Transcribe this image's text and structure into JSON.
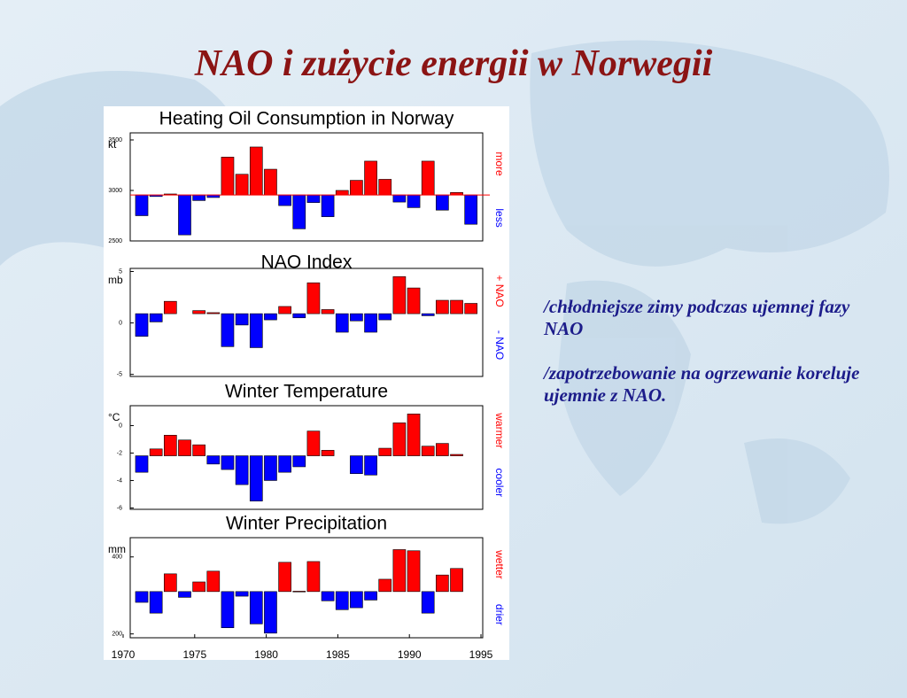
{
  "title": "NAO i zużycie energii w Norwegii",
  "notes": [
    "/chłodniejsze zimy podczas ujemnej fazy NAO",
    "/zapotrzebowanie na ogrzewanie koreluje ujemnie z NAO."
  ],
  "chart_data": [
    {
      "type": "bar",
      "title": "Heating Oil Consumption in Norway",
      "y_label": "kt",
      "annotations": [
        "more",
        "less"
      ],
      "x": [
        1971,
        1972,
        1973,
        1974,
        1975,
        1976,
        1977,
        1978,
        1979,
        1980,
        1981,
        1982,
        1983,
        1984,
        1985,
        1986,
        1987,
        1988,
        1989,
        1990,
        1991,
        1992,
        1993,
        1994
      ],
      "values": [
        2750,
        2940,
        2965,
        2560,
        2900,
        2930,
        3330,
        3160,
        3430,
        3210,
        2850,
        2620,
        2880,
        2740,
        3000,
        3100,
        3290,
        3110,
        2885,
        2830,
        3290,
        2805,
        2980,
        2665
      ],
      "baseline": 2955,
      "baseline_color": "#ff0000",
      "above_color": "#ff0000",
      "below_color": "#0000ff",
      "xlim": [
        1970,
        1995
      ],
      "ylim": [
        2500,
        3570
      ],
      "yticks": [
        2500,
        3000,
        3500
      ]
    },
    {
      "type": "bar",
      "title": "NAO Index",
      "y_label": "mb",
      "annotations": [
        "+ NAO",
        "- NAO"
      ],
      "x": [
        1971,
        1972,
        1973,
        1974,
        1975,
        1976,
        1977,
        1978,
        1979,
        1980,
        1981,
        1982,
        1983,
        1984,
        1985,
        1986,
        1987,
        1988,
        1989,
        1990,
        1991,
        1992,
        1993,
        1994
      ],
      "values": [
        -1.3,
        0.1,
        2.1,
        null,
        1.2,
        1.0,
        -2.3,
        -0.2,
        -2.4,
        0.3,
        1.6,
        0.5,
        3.9,
        1.3,
        -0.9,
        0.2,
        -0.9,
        0.3,
        4.5,
        3.4,
        0.7,
        2.2,
        2.2,
        1.9
      ],
      "baseline": 0.9,
      "above_color": "#ff0000",
      "below_color": "#0000ff",
      "xlim": [
        1970,
        1995
      ],
      "ylim": [
        -5.2,
        5.3
      ],
      "yticks": [
        -5,
        0,
        5
      ]
    },
    {
      "type": "bar",
      "title": "Winter Temperature",
      "y_label": "°C",
      "annotations": [
        "warmer",
        "cooler"
      ],
      "x": [
        1971,
        1972,
        1973,
        1974,
        1975,
        1976,
        1977,
        1978,
        1979,
        1980,
        1981,
        1982,
        1983,
        1984,
        1985,
        1986,
        1987,
        1988,
        1989,
        1990,
        1991,
        1992,
        1993,
        1994
      ],
      "values": [
        -3.4,
        -1.7,
        -0.7,
        -1.05,
        -1.4,
        -2.8,
        -3.2,
        -4.3,
        -5.5,
        -4.0,
        -3.4,
        -3.0,
        -0.4,
        -1.8,
        null,
        -3.5,
        -3.6,
        -1.65,
        0.2,
        0.85,
        -1.5,
        -1.3,
        -2.1,
        null
      ],
      "baseline": -2.2,
      "above_color": "#ff0000",
      "below_color": "#0000ff",
      "xlim": [
        1970,
        1995
      ],
      "ylim": [
        -6.1,
        1.45
      ],
      "yticks": [
        -6,
        -4,
        -2,
        0
      ]
    },
    {
      "type": "bar",
      "title": "Winter Precipitation",
      "y_label": "mm",
      "annotations": [
        "wetter",
        "drier"
      ],
      "x": [
        1971,
        1972,
        1973,
        1974,
        1975,
        1976,
        1977,
        1978,
        1979,
        1980,
        1981,
        1982,
        1983,
        1984,
        1985,
        1986,
        1987,
        1988,
        1989,
        1990,
        1991,
        1992,
        1993,
        1994
      ],
      "values": [
        282,
        254,
        356,
        295,
        335,
        363,
        216,
        298,
        226,
        202,
        386,
        311,
        388,
        286,
        263,
        268,
        288,
        342,
        419,
        416,
        254,
        353,
        370,
        null
      ],
      "baseline": 310,
      "above_color": "#ff0000",
      "below_color": "#0000ff",
      "xlim": [
        1970,
        1995
      ],
      "ylim": [
        190,
        450
      ],
      "yticks": [
        200,
        400
      ],
      "xticks": [
        1970,
        1975,
        1980,
        1985,
        1990,
        1995
      ]
    }
  ]
}
